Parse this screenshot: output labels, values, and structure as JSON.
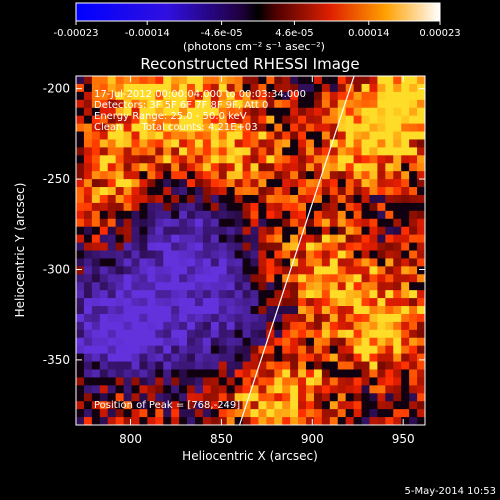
{
  "chart_data": {
    "type": "heatmap",
    "title": "Reconstructed RHESSI Image",
    "xlabel": "Heliocentric X (arcsec)",
    "ylabel": "Heliocentric Y (arcsec)",
    "xlim": [
      770,
      962
    ],
    "ylim": [
      -386,
      -193
    ],
    "x_ticks": [
      800,
      850,
      900,
      950
    ],
    "y_ticks": [
      -200,
      -250,
      -300,
      -350
    ],
    "colorbar": {
      "range": [
        -0.00023,
        0.00023
      ],
      "ticks": [
        {
          "value": -0.00023,
          "label": "-0.00023"
        },
        {
          "value": -0.00014,
          "label": "-0.00014"
        },
        {
          "value": -4.6e-05,
          "label": "-4.6e-05"
        },
        {
          "value": 4.6e-05,
          "label": "4.6e-05"
        },
        {
          "value": 0.00014,
          "label": "0.00014"
        },
        {
          "value": 0.00023,
          "label": "0.00023"
        }
      ],
      "unit_label": "(photons cm⁻² s⁻¹ asec⁻²)"
    },
    "info_lines": [
      "17-Jul-2012 00:00:04.000 to 00:03:34.000",
      "Detectors: 3F 5F 6F 7F 8F 9F, Att 0",
      "Energy Range: 25.0 - 50.0 keV",
      "Clean      Total counts: 4.21E+03"
    ],
    "peak_label": "Position of Peak = [768,-249]",
    "peak": [
      768,
      -249
    ],
    "limb_line": [
      [
        860,
        -386
      ],
      [
        923,
        -193
      ]
    ],
    "footer": "5-May-2014 10:53"
  }
}
